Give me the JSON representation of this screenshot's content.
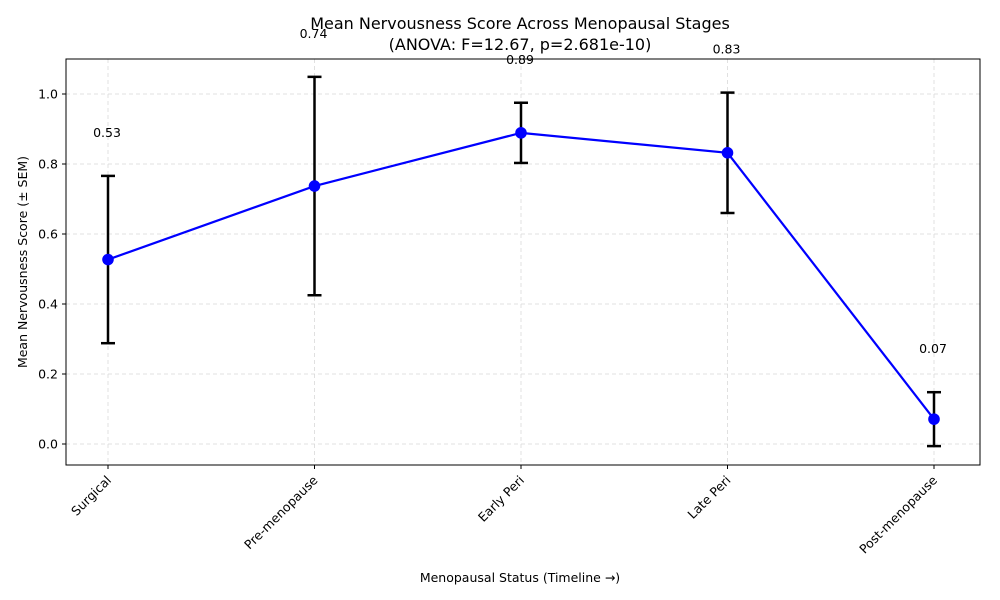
{
  "chart_data": {
    "type": "line",
    "title": "Mean Nervousness Score Across Menopausal Stages",
    "subtitle": "(ANOVA: F=12.67, p=2.681e-10)",
    "xlabel": "Menopausal Status (Timeline →)",
    "ylabel": "Mean Nervousness Score (± SEM)",
    "categories": [
      "Surgical",
      "Pre-menopause",
      "Early Peri",
      "Late Peri",
      "Post-menopause"
    ],
    "series": [
      {
        "values": [
          0.527,
          0.737,
          0.889,
          0.832,
          0.071
        ],
        "error": [
          0.239,
          0.312,
          0.086,
          0.172,
          0.077
        ],
        "data_labels": [
          "0.53",
          "0.74",
          "0.89",
          "0.83",
          "0.07"
        ]
      }
    ],
    "ylim": [
      -0.06,
      1.1
    ],
    "yticks": [
      0.0,
      0.2,
      0.4,
      0.6,
      0.8,
      1.0
    ],
    "ytick_labels": [
      "0.0",
      "0.2",
      "0.4",
      "0.6",
      "0.8",
      "1.0"
    ],
    "grid": true,
    "colors": {
      "line": "#0000ff",
      "marker": "#0000ff",
      "errorbar": "#000000"
    }
  }
}
